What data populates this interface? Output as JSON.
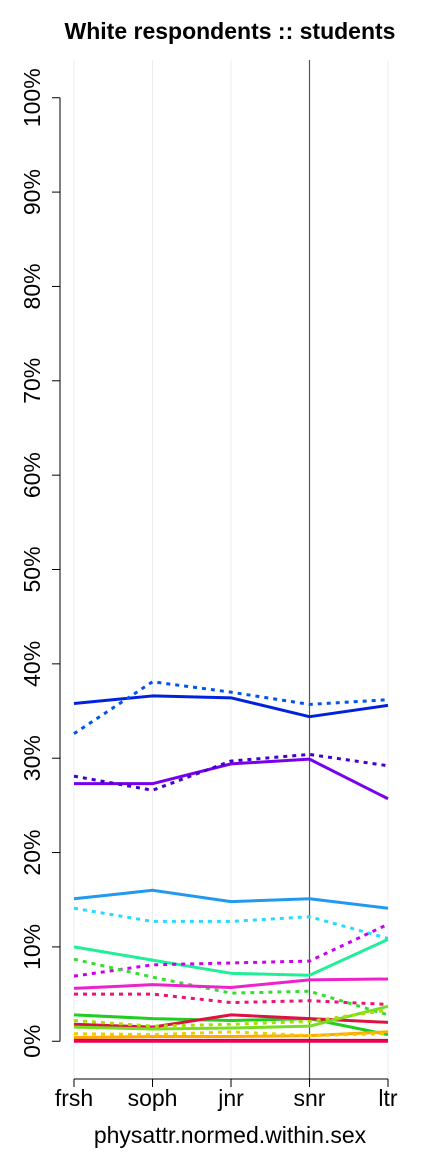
{
  "chart_data": {
    "type": "line",
    "title": "White respondents :: students",
    "xlabel": "physattr.normed.within.sex",
    "categories": [
      "frsh",
      "soph",
      "jnr",
      "snr",
      "ltr"
    ],
    "ylim": [
      -4,
      104
    ],
    "yticks": [
      {
        "value": 0,
        "label": "0%"
      },
      {
        "value": 10,
        "label": "10%"
      },
      {
        "value": 20,
        "label": "20%"
      },
      {
        "value": 30,
        "label": "30%"
      },
      {
        "value": 40,
        "label": "40%"
      },
      {
        "value": 50,
        "label": "50%"
      },
      {
        "value": 60,
        "label": "60%"
      },
      {
        "value": 70,
        "label": "70%"
      },
      {
        "value": 80,
        "label": "80%"
      },
      {
        "value": 90,
        "label": "90%"
      },
      {
        "value": 100,
        "label": "100%"
      }
    ],
    "grid": true,
    "highlight_x": "snr",
    "series": [
      {
        "color": "#0022dd",
        "dashed": false,
        "values": [
          35.8,
          36.6,
          36.4,
          34.4,
          35.6
        ]
      },
      {
        "color": "#0055ee",
        "dashed": true,
        "values": [
          32.6,
          38.1,
          37.0,
          35.7,
          36.2
        ]
      },
      {
        "color": "#7700ee",
        "dashed": false,
        "values": [
          27.3,
          27.3,
          29.4,
          29.9,
          25.7
        ]
      },
      {
        "color": "#4400cc",
        "dashed": true,
        "values": [
          28.1,
          26.6,
          29.7,
          30.4,
          29.2
        ]
      },
      {
        "color": "#2299ee",
        "dashed": false,
        "values": [
          15.1,
          16.0,
          14.8,
          15.1,
          14.1
        ]
      },
      {
        "color": "#22ddff",
        "dashed": true,
        "values": [
          14.1,
          12.7,
          12.7,
          13.2,
          10.9
        ]
      },
      {
        "color": "#22ee99",
        "dashed": false,
        "values": [
          10.0,
          8.6,
          7.2,
          7.0,
          10.8
        ]
      },
      {
        "color": "#cc00ee",
        "dashed": true,
        "values": [
          6.9,
          8.1,
          8.3,
          8.5,
          12.4
        ]
      },
      {
        "color": "#33dd33",
        "dashed": true,
        "values": [
          8.7,
          6.8,
          5.1,
          5.3,
          2.8
        ]
      },
      {
        "color": "#ee22cc",
        "dashed": false,
        "values": [
          5.6,
          6.0,
          5.7,
          6.5,
          6.6
        ]
      },
      {
        "color": "#ee1177",
        "dashed": true,
        "values": [
          5.0,
          5.0,
          4.1,
          4.3,
          3.9
        ]
      },
      {
        "color": "#22cc22",
        "dashed": false,
        "values": [
          2.8,
          2.4,
          2.2,
          2.4,
          0.7
        ]
      },
      {
        "color": "#dd1144",
        "dashed": false,
        "values": [
          1.8,
          1.5,
          2.8,
          2.4,
          2.0
        ]
      },
      {
        "color": "#77dd22",
        "dashed": false,
        "values": [
          1.5,
          1.3,
          1.4,
          1.6,
          3.7
        ]
      },
      {
        "color": "#aadd00",
        "dashed": true,
        "values": [
          2.2,
          1.6,
          1.8,
          2.1,
          3.3
        ]
      },
      {
        "color": "#ffaa00",
        "dashed": false,
        "values": [
          0.4,
          0.5,
          0.5,
          0.6,
          1.0
        ]
      },
      {
        "color": "#eecc00",
        "dashed": true,
        "values": [
          0.8,
          0.7,
          1.0,
          0.6,
          0.8
        ]
      },
      {
        "color": "#cc0033",
        "dashed": false,
        "values": [
          0.1,
          0.1,
          0.1,
          0.1,
          0.1
        ]
      },
      {
        "color": "#ee0055",
        "dashed": false,
        "values": [
          0,
          0,
          0,
          0,
          0
        ]
      }
    ]
  }
}
